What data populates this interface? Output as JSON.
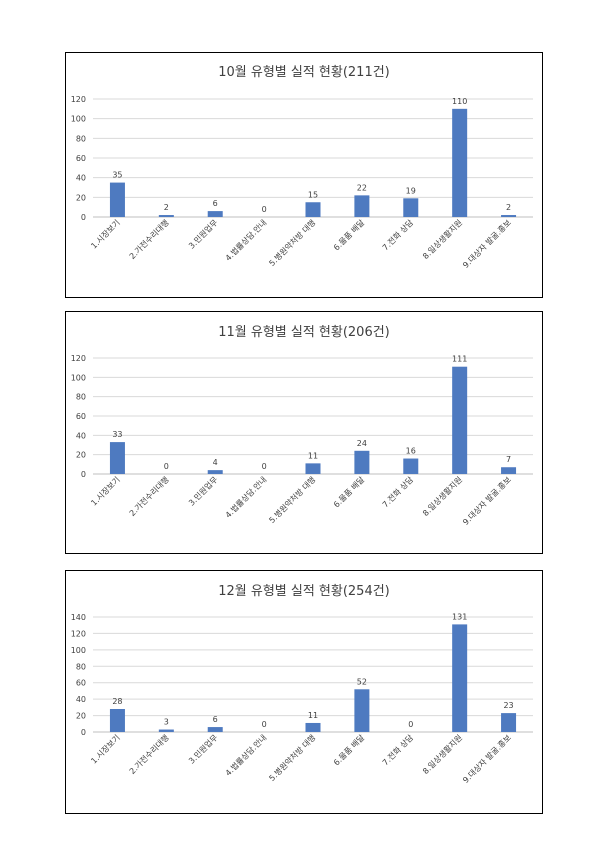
{
  "chart_data": [
    {
      "type": "bar",
      "title": "10월 유형별 실적 현황(211건)",
      "categories": [
        "1.시장보기",
        "2.가전수리대행",
        "3.민원업무",
        "4.법률상담.안내",
        "5.병원약처방 대행",
        "6.물품 배달",
        "7.전화 상담",
        "8.일상생활지원",
        "9.대상자 발굴.홍보"
      ],
      "values": [
        35,
        2,
        6,
        0,
        15,
        22,
        19,
        110,
        2
      ],
      "ylim": [
        0,
        120
      ],
      "yticks": [
        0,
        20,
        40,
        60,
        80,
        100,
        120
      ],
      "grid": true,
      "color": "#4e7ac0"
    },
    {
      "type": "bar",
      "title": "11월 유형별 실적 현황(206건)",
      "categories": [
        "1.시장보기",
        "2.가전수리대행",
        "3.민원업무",
        "4.법률상담.안내",
        "5.병원약처방 대행",
        "6.물품 배달",
        "7.전화 상담",
        "8.일상생활지원",
        "9.대상자 발굴.홍보"
      ],
      "values": [
        33,
        0,
        4,
        0,
        11,
        24,
        16,
        111,
        7
      ],
      "ylim": [
        0,
        120
      ],
      "yticks": [
        0,
        20,
        40,
        60,
        80,
        100,
        120
      ],
      "grid": true,
      "color": "#4e7ac0"
    },
    {
      "type": "bar",
      "title": "12월 유형별 실적 현황(254건)",
      "categories": [
        "1.시장보기",
        "2.가전수리대행",
        "3.민원업무",
        "4.법률상담.안내",
        "5.병원약처방 대행",
        "6.물품 배달",
        "7.전화 상담",
        "8.일상생활지원",
        "9.대상자 발굴.홍보"
      ],
      "values": [
        28,
        3,
        6,
        0,
        11,
        52,
        0,
        131,
        23
      ],
      "ylim": [
        0,
        140
      ],
      "yticks": [
        0,
        20,
        40,
        60,
        80,
        100,
        120,
        140
      ],
      "grid": true,
      "color": "#4e7ac0"
    }
  ]
}
